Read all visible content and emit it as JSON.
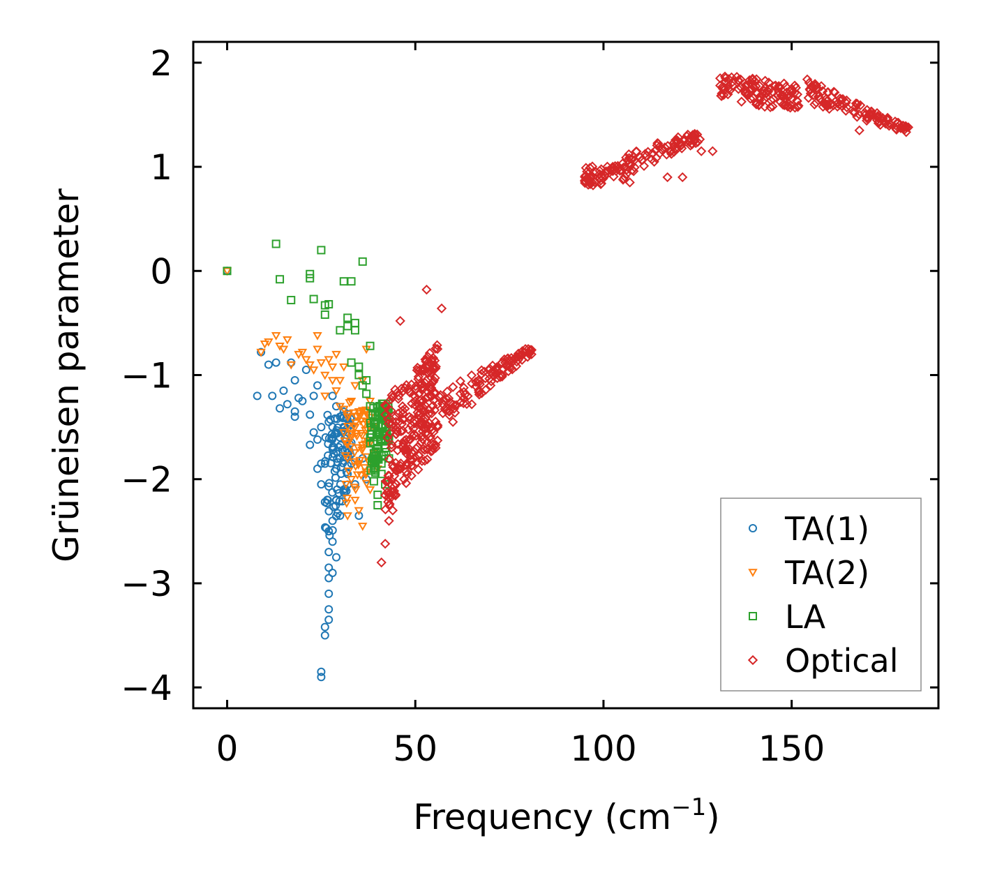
{
  "chart_data": {
    "type": "scatter",
    "xlabel": "Frequency (cm",
    "xlabel_sup": "−1",
    "xlabel_close": ")",
    "ylabel": "Grüneisen parameter",
    "xlim": [
      -9,
      189
    ],
    "ylim": [
      -4.2,
      2.2
    ],
    "xticks": [
      0,
      50,
      100,
      150
    ],
    "xtick_labels": [
      "0",
      "50",
      "100",
      "150"
    ],
    "yticks": [
      -4,
      -3,
      -2,
      -1,
      0,
      1,
      2
    ],
    "ytick_labels": [
      "−4",
      "−3",
      "−2",
      "−1",
      "0",
      "1",
      "2"
    ],
    "legend_position": "lower-right",
    "series": [
      {
        "name": "TA(1)",
        "marker": "circle",
        "color": "#1f77b4",
        "points": [
          [
            0,
            0
          ],
          [
            8,
            -1.2
          ],
          [
            9,
            -0.78
          ],
          [
            11,
            -0.9
          ],
          [
            13,
            -0.88
          ],
          [
            12,
            -1.2
          ],
          [
            14,
            -1.32
          ],
          [
            15,
            -1.15
          ],
          [
            16,
            -1.28
          ],
          [
            17,
            -0.88
          ],
          [
            18,
            -1.05
          ],
          [
            18,
            -1.35
          ],
          [
            18,
            -1.4
          ],
          [
            19,
            -1.22
          ],
          [
            20,
            -1.25
          ],
          [
            21,
            -0.95
          ],
          [
            22,
            -1.38
          ],
          [
            22,
            -1.67
          ],
          [
            23,
            -1.2
          ],
          [
            23,
            -1.55
          ],
          [
            24,
            -1.1
          ],
          [
            24,
            -1.62
          ],
          [
            24,
            -1.9
          ],
          [
            25,
            -1.5
          ],
          [
            25,
            -1.85
          ],
          [
            25,
            -2.05
          ],
          [
            25,
            -3.85
          ],
          [
            25,
            -3.9
          ],
          [
            26,
            -2.22
          ],
          [
            26,
            -3.5
          ],
          [
            26,
            -3.42
          ],
          [
            27,
            -3.35
          ],
          [
            27,
            -3.25
          ],
          [
            27,
            -3.1
          ],
          [
            27,
            -2.95
          ],
          [
            27,
            -2.85
          ],
          [
            27,
            -2.7
          ],
          [
            27,
            -2.5
          ],
          [
            27,
            -1.45
          ],
          [
            28,
            -2.4
          ],
          [
            28,
            -2.6
          ],
          [
            28,
            -2.9
          ],
          [
            28,
            -1.7
          ],
          [
            28,
            -1.2
          ],
          [
            29,
            -2.2
          ],
          [
            29,
            -1.9
          ],
          [
            29,
            -1.55
          ],
          [
            29,
            -1.3
          ],
          [
            29,
            -2.75
          ],
          [
            30,
            -1.4
          ],
          [
            30,
            -1.8
          ],
          [
            30,
            -2.35
          ],
          [
            30,
            -1.6
          ],
          [
            31,
            -1.5
          ],
          [
            31,
            -2.1
          ],
          [
            31,
            -1.35
          ],
          [
            32,
            -1.75
          ],
          [
            32,
            -1.95
          ],
          [
            33,
            -1.65
          ],
          [
            33,
            -1.85
          ],
          [
            34,
            -2.05
          ],
          [
            35,
            -2.35
          ],
          [
            36,
            -1.8
          ],
          [
            37,
            -2.0
          ]
        ]
      },
      {
        "name": "TA(2)",
        "marker": "triangle-down",
        "color": "#ff7f0e",
        "points": [
          [
            0,
            0
          ],
          [
            9,
            -0.78
          ],
          [
            10,
            -0.7
          ],
          [
            11,
            -0.68
          ],
          [
            13,
            -0.62
          ],
          [
            14,
            -0.72
          ],
          [
            15,
            -0.75
          ],
          [
            16,
            -0.66
          ],
          [
            17,
            -0.9
          ],
          [
            19,
            -0.8
          ],
          [
            20,
            -0.78
          ],
          [
            21,
            -0.85
          ],
          [
            22,
            -0.9
          ],
          [
            23,
            -0.95
          ],
          [
            24,
            -0.75
          ],
          [
            24,
            -0.62
          ],
          [
            25,
            -0.88
          ],
          [
            26,
            -1.0
          ],
          [
            26,
            -1.2
          ],
          [
            27,
            -0.85
          ],
          [
            28,
            -1.05
          ],
          [
            28,
            -0.92
          ],
          [
            29,
            -1.15
          ],
          [
            29,
            -0.8
          ],
          [
            30,
            -1.3
          ],
          [
            30,
            -1.05
          ],
          [
            31,
            -1.55
          ],
          [
            31,
            -0.92
          ],
          [
            32,
            -1.4
          ],
          [
            32,
            -1.8
          ],
          [
            32,
            -2.35
          ],
          [
            33,
            -1.6
          ],
          [
            33,
            -2.0
          ],
          [
            33,
            -1.25
          ],
          [
            34,
            -1.5
          ],
          [
            34,
            -2.2
          ],
          [
            34,
            -1.1
          ],
          [
            35,
            -1.85
          ],
          [
            35,
            -1.35
          ],
          [
            35,
            -2.3
          ],
          [
            36,
            -1.7
          ],
          [
            36,
            -2.45
          ],
          [
            36,
            -1.05
          ],
          [
            37,
            -1.95
          ],
          [
            37,
            -1.45
          ],
          [
            37,
            -0.75
          ],
          [
            38,
            -1.65
          ],
          [
            38,
            -1.25
          ],
          [
            38,
            -2.1
          ],
          [
            39,
            -1.75
          ],
          [
            39,
            -1.5
          ],
          [
            40,
            -1.9
          ]
        ]
      },
      {
        "name": "LA",
        "marker": "square",
        "color": "#2ca02c",
        "points": [
          [
            0,
            0
          ],
          [
            13,
            0.26
          ],
          [
            14,
            -0.08
          ],
          [
            17,
            -0.28
          ],
          [
            22,
            -0.07
          ],
          [
            22,
            -0.03
          ],
          [
            23,
            -0.27
          ],
          [
            25,
            0.2
          ],
          [
            26,
            -0.42
          ],
          [
            26,
            -0.33
          ],
          [
            27,
            -0.32
          ],
          [
            30,
            -0.57
          ],
          [
            31,
            -0.1
          ],
          [
            32,
            -0.45
          ],
          [
            32,
            -0.53
          ],
          [
            33,
            -0.1
          ],
          [
            33,
            -0.88
          ],
          [
            34,
            -0.5
          ],
          [
            34,
            -0.57
          ],
          [
            35,
            -0.92
          ],
          [
            35,
            -1.0
          ],
          [
            36,
            -1.1
          ],
          [
            36,
            0.09
          ],
          [
            37,
            -1.05
          ],
          [
            37,
            -1.18
          ],
          [
            38,
            -0.72
          ],
          [
            38,
            -1.3
          ],
          [
            38,
            -1.6
          ],
          [
            39,
            -1.45
          ],
          [
            39,
            -1.75
          ],
          [
            39,
            -1.9
          ],
          [
            39,
            -2.02
          ],
          [
            40,
            -1.35
          ],
          [
            40,
            -1.55
          ],
          [
            40,
            -1.7
          ],
          [
            40,
            -2.15
          ],
          [
            40,
            -2.25
          ],
          [
            41,
            -1.4
          ],
          [
            41,
            -1.62
          ],
          [
            41,
            -1.85
          ],
          [
            41,
            -1.95
          ],
          [
            42,
            -1.3
          ],
          [
            42,
            -1.5
          ],
          [
            42,
            -1.7
          ],
          [
            42,
            -2.05
          ],
          [
            43,
            -1.45
          ],
          [
            43,
            -1.6
          ],
          [
            43,
            -1.8
          ]
        ]
      },
      {
        "name": "Optical",
        "marker": "diamond",
        "color": "#d62728",
        "points": [
          [
            41,
            -2.8
          ],
          [
            42,
            -2.62
          ],
          [
            43,
            -2.4
          ],
          [
            44,
            -2.3
          ],
          [
            46,
            -0.48
          ],
          [
            53,
            -0.18
          ],
          [
            57,
            -0.36
          ],
          [
            60,
            -1.45
          ],
          [
            65,
            -1.28
          ],
          [
            70,
            -1.1
          ],
          [
            75,
            -0.9
          ],
          [
            80,
            -0.75
          ],
          [
            97,
            0.85
          ],
          [
            107,
            0.85
          ],
          [
            117,
            0.9
          ],
          [
            121,
            0.9
          ],
          [
            126,
            1.15
          ],
          [
            129,
            1.15
          ],
          [
            131,
            1.85
          ],
          [
            150,
            1.75
          ],
          [
            168,
            1.35
          ],
          [
            180,
            1.38
          ]
        ]
      }
    ],
    "clusters": [
      {
        "series": 3,
        "x_from": 42,
        "x_to": 56,
        "y_bottom_from": -2.3,
        "y_bottom_to": -1.7,
        "y_top_from": -1.2,
        "y_top_to": -0.7,
        "count": 260
      },
      {
        "series": 3,
        "x_from": 56,
        "x_to": 81,
        "y_bottom_from": -1.5,
        "y_bottom_to": -0.8,
        "y_top_from": -1.15,
        "y_top_to": -0.72,
        "count": 110
      },
      {
        "series": 3,
        "x_from": 95,
        "x_to": 106,
        "y_bottom_from": 0.8,
        "y_bottom_to": 0.88,
        "y_top_from": 1.0,
        "y_top_to": 1.05,
        "count": 60
      },
      {
        "series": 3,
        "x_from": 106,
        "x_to": 126,
        "y_bottom_from": 0.92,
        "y_bottom_to": 1.25,
        "y_top_from": 1.15,
        "y_top_to": 1.35,
        "count": 80
      },
      {
        "series": 3,
        "x_from": 131,
        "x_to": 152,
        "y_bottom_from": 1.65,
        "y_bottom_to": 1.52,
        "y_top_from": 1.9,
        "y_top_to": 1.78,
        "count": 110
      },
      {
        "series": 3,
        "x_from": 154,
        "x_to": 181,
        "y_bottom_from": 1.62,
        "y_bottom_to": 1.32,
        "y_top_from": 1.85,
        "y_top_to": 1.38,
        "count": 110
      },
      {
        "series": 2,
        "x_from": 38,
        "x_to": 43,
        "y_bottom_from": -2.0,
        "y_bottom_to": -1.8,
        "y_top_from": -1.3,
        "y_top_to": -1.25,
        "count": 70
      },
      {
        "series": 1,
        "x_from": 31,
        "x_to": 38,
        "y_bottom_from": -2.3,
        "y_bottom_to": -2.0,
        "y_top_from": -1.2,
        "y_top_to": -1.3,
        "count": 60
      },
      {
        "series": 0,
        "x_from": 26,
        "x_to": 33,
        "y_bottom_from": -2.7,
        "y_bottom_to": -2.0,
        "y_top_from": -1.3,
        "y_top_to": -1.35,
        "count": 90
      }
    ]
  }
}
